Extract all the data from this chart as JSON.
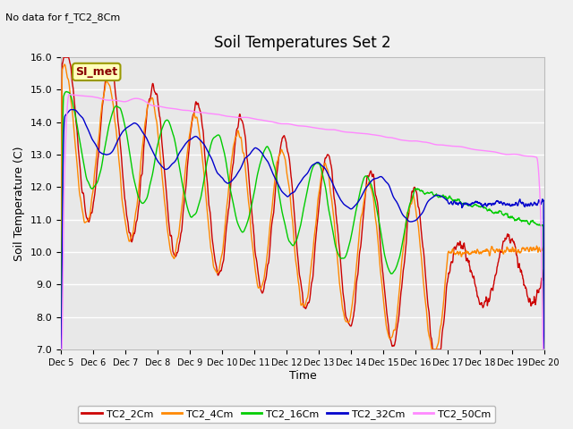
{
  "title": "Soil Temperatures Set 2",
  "xlabel": "Time",
  "ylabel": "Soil Temperature (C)",
  "no_data_text": "No data for f_TC2_8Cm",
  "legend_box_text": "SI_met",
  "ylim": [
    7.0,
    16.0
  ],
  "yticks": [
    7.0,
    8.0,
    9.0,
    10.0,
    11.0,
    12.0,
    13.0,
    14.0,
    15.0,
    16.0
  ],
  "xtick_labels": [
    "Dec 5",
    "Dec 6",
    "Dec 7",
    "Dec 8",
    "Dec 9",
    "Dec 10",
    "Dec 11",
    "Dec 12",
    "Dec 13",
    "Dec 14",
    "Dec 15",
    "Dec 16",
    "Dec 17",
    "Dec 18",
    "Dec 19",
    "Dec 20"
  ],
  "series_colors": {
    "TC2_2Cm": "#cc0000",
    "TC2_4Cm": "#ff8800",
    "TC2_16Cm": "#00cc00",
    "TC2_32Cm": "#0000cc",
    "TC2_50Cm": "#ff88ff"
  },
  "fig_bg_color": "#f0f0f0",
  "plot_bg_color": "#e8e8e8",
  "grid_color": "#ffffff",
  "n_points": 1500
}
